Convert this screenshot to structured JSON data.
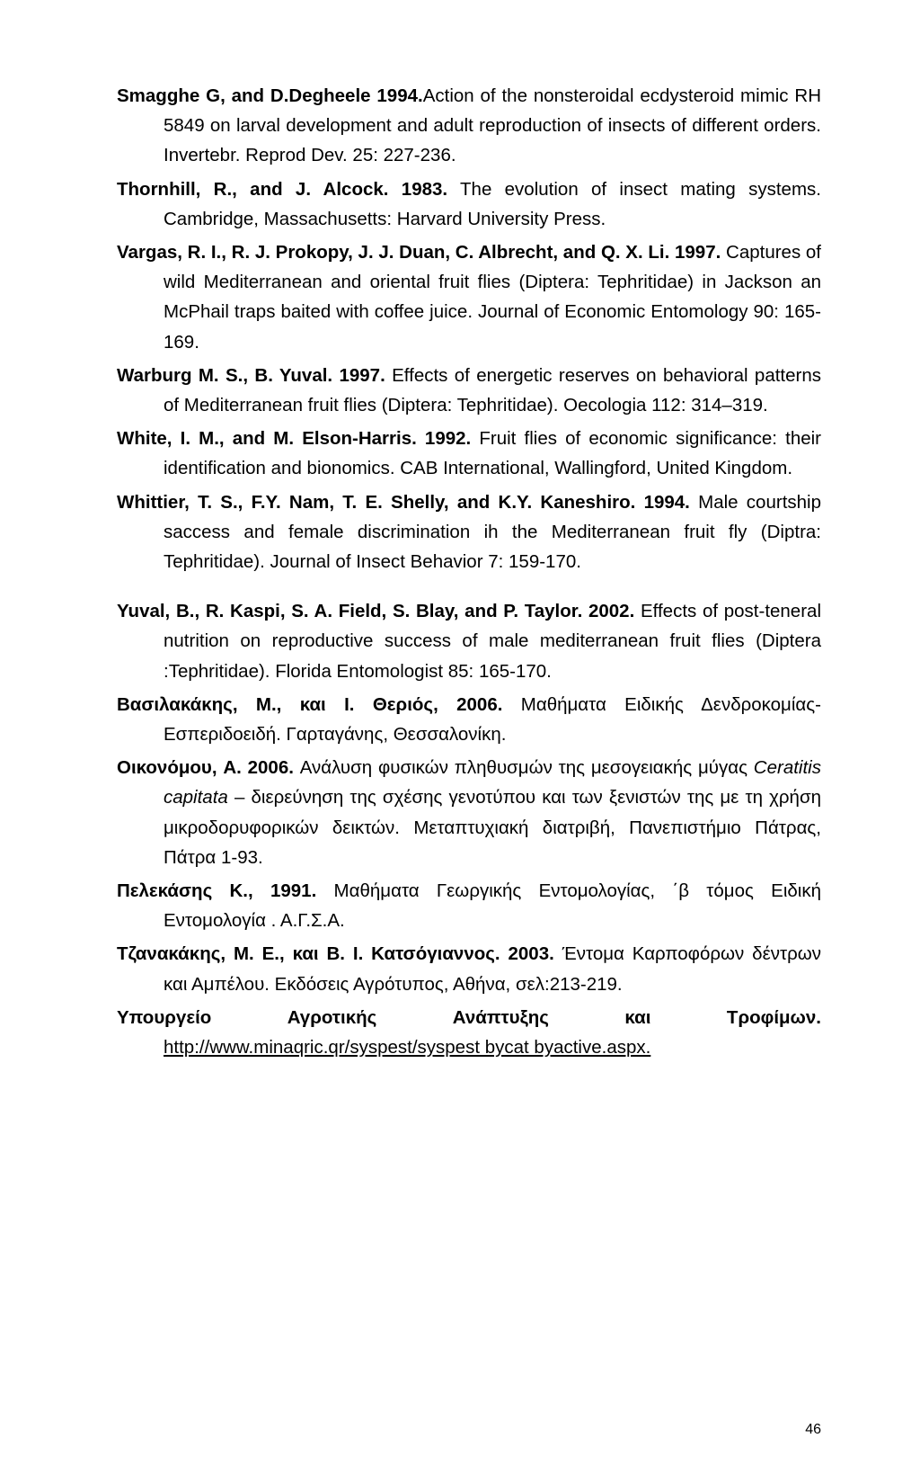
{
  "refs": [
    {
      "authors": "Smagghe G, and D.Degheele 1994.",
      "rest": "Action of the nonsteroidal ecdysteroid mimic RH 5849 on larval development and adult reproduction of insects of different orders. Invertebr. Reprod Dev. 25: 227-236."
    },
    {
      "authors": "Thornhill, R., and J. Alcock. 1983.",
      "rest": " The evolution of insect mating systems. Cambridge, Massachusetts: Harvard University Press."
    },
    {
      "authors": "Vargas, R. I., R. J. Prokopy, J. J. Duan, C. Albrecht, and Q. X. Li. 1997.",
      "rest": " Captures of wild Mediterranean and oriental fruit flies (Diptera: Tephritidae) in Jackson an McPhail traps baited with coffee juice. Journal of Economic Entomology 90: 165-169."
    },
    {
      "authors": "Warburg M. S., B. Yuval. 1997.",
      "rest": " Effects of energetic reserves on behavioral patterns of Mediterranean fruit flies (Diptera: Tephritidae). Oecologia 112: 314–319."
    },
    {
      "authors": "White, I. M., and M. Elson-Harris. 1992.",
      "rest": " Fruit flies of economic significance: their identification and bionomics. CAB International, Wallingford, United Kingdom."
    },
    {
      "authors": "Whittier, T. S., F.Y. Nam, T. E. Shelly, and K.Y. Kaneshiro. 1994.",
      "rest": " Male courtship saccess and female discrimination ih the Mediterranean fruit fly (Diptra: Tephritidae). Journal of Insect Behavior 7: 159-170."
    },
    {
      "authors": "Yuval, B., R. Kaspi, S. A. Field, S. Blay, and P. Taylor. 2002.",
      "rest": " Effects of post-teneral nutrition on reproductive success of male mediterranean fruit flies (Diptera :Tephritidae). Florida Entomologist 85: 165-170."
    },
    {
      "authors": "Βασιλακάκης, Μ., και I. Θεριός, 2006.",
      "rest": " Μαθήματα Ειδικής Δενδροκομίας- Εσπεριδοειδή. Γαρταγάνης, Θεσσαλονίκη."
    },
    {
      "authors": "Οικονόμου, A. 2006.",
      "rest_a": " Ανάλυση φυσικών πληθυσμών της μεσογειακής μύγας ",
      "italic": "Ceratitis capitata",
      "rest_b": " – διερεύνηση της σχέσης γενοτύπου και των ξενιστών της με τη χρήση μικροδορυφορικών δεικτών. Μεταπτυχιακή διατριβή, Πανεπιστήμιο Πάτρας, Πάτρα 1-93."
    },
    {
      "authors": "Πελεκάσης Κ., 1991.",
      "rest": " Μαθήματα Γεωργικής Εντομολογίας, ΄β τόμος Ειδική Εντομολογία . Α.Γ.Σ.Α."
    },
    {
      "authors": "Τζανακάκης, Μ. Ε., και Β. I. Κατσόγιαννος. 2003.",
      "rest": " Έντομα Καρποφόρων δέντρων και Αμπέλου. Εκδόσεις Αγρότυπος, Αθήνα, σελ:213-219."
    }
  ],
  "footer": {
    "w1": "Υπουργείο",
    "w2": "Αγροτικής",
    "w3": "Ανάπτυξης",
    "w4": "και",
    "w5": "Τροφίμων.",
    "link": "http://www.minaqric.qr/syspest/syspest bycat byactive.aspx."
  },
  "page_number": "46"
}
